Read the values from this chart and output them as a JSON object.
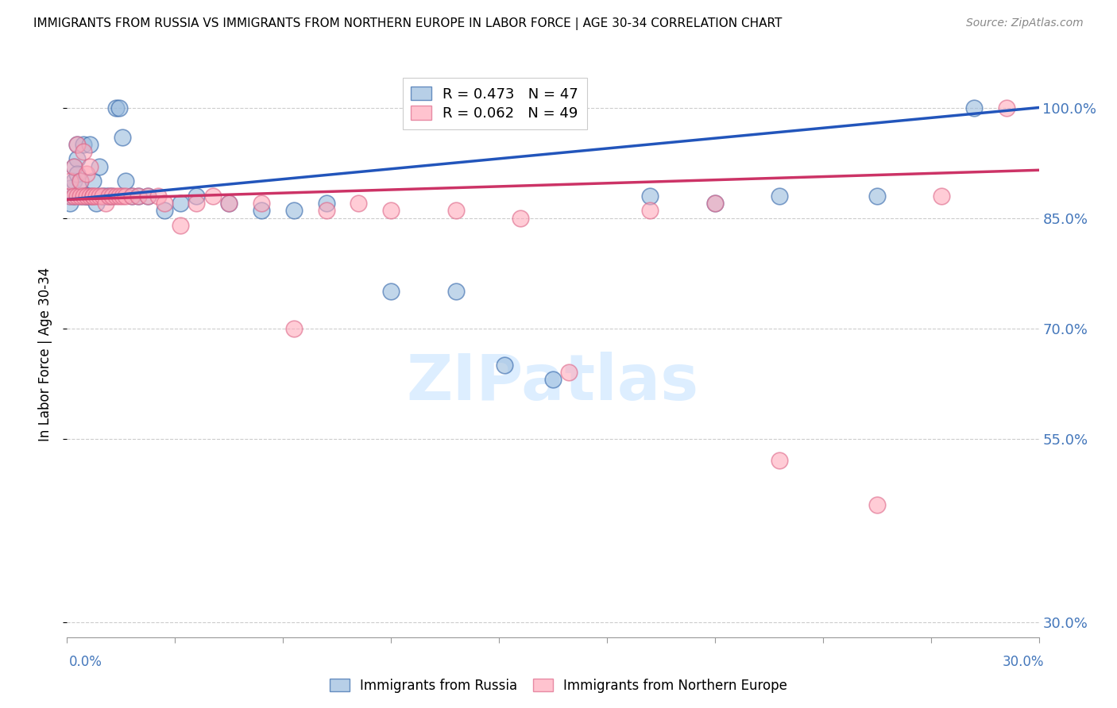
{
  "title": "IMMIGRANTS FROM RUSSIA VS IMMIGRANTS FROM NORTHERN EUROPE IN LABOR FORCE | AGE 30-34 CORRELATION CHART",
  "source": "Source: ZipAtlas.com",
  "ylabel": "In Labor Force | Age 30-34",
  "ytick_values": [
    0.3,
    0.55,
    0.7,
    0.85,
    1.0
  ],
  "ytick_labels": [
    "30.0%",
    "55.0%",
    "70.0%",
    "85.0%",
    "100.0%"
  ],
  "xlim": [
    0.0,
    0.3
  ],
  "ylim": [
    0.28,
    1.05
  ],
  "legend_blue": "R = 0.473   N = 47",
  "legend_pink": "R = 0.062   N = 49",
  "legend_label_blue": "Immigrants from Russia",
  "legend_label_pink": "Immigrants from Northern Europe",
  "blue_fill": "#99BBDD",
  "pink_fill": "#FFAABB",
  "blue_edge": "#3366AA",
  "pink_edge": "#DD6688",
  "trendline_blue": "#2255BB",
  "trendline_pink": "#CC3366",
  "watermark_color": "#DDEEFF",
  "blue_x": [
    0.001,
    0.001,
    0.001,
    0.002,
    0.002,
    0.002,
    0.003,
    0.003,
    0.003,
    0.004,
    0.004,
    0.005,
    0.005,
    0.006,
    0.006,
    0.007,
    0.007,
    0.008,
    0.009,
    0.01,
    0.011,
    0.012,
    0.013,
    0.014,
    0.015,
    0.016,
    0.017,
    0.018,
    0.02,
    0.022,
    0.025,
    0.03,
    0.035,
    0.04,
    0.05,
    0.06,
    0.07,
    0.08,
    0.1,
    0.12,
    0.135,
    0.15,
    0.18,
    0.2,
    0.22,
    0.25,
    0.28
  ],
  "blue_y": [
    0.88,
    0.87,
    0.89,
    0.88,
    0.9,
    0.92,
    0.95,
    0.93,
    0.91,
    0.9,
    0.88,
    0.95,
    0.88,
    0.88,
    0.88,
    0.88,
    0.95,
    0.9,
    0.87,
    0.92,
    0.88,
    0.88,
    0.88,
    0.88,
    1.0,
    1.0,
    0.96,
    0.9,
    0.88,
    0.88,
    0.88,
    0.86,
    0.87,
    0.88,
    0.87,
    0.86,
    0.86,
    0.87,
    0.75,
    0.75,
    0.65,
    0.63,
    0.88,
    0.87,
    0.88,
    0.88,
    1.0
  ],
  "pink_x": [
    0.001,
    0.001,
    0.002,
    0.002,
    0.003,
    0.003,
    0.004,
    0.004,
    0.005,
    0.005,
    0.006,
    0.006,
    0.007,
    0.007,
    0.008,
    0.008,
    0.009,
    0.01,
    0.011,
    0.012,
    0.013,
    0.014,
    0.015,
    0.016,
    0.017,
    0.018,
    0.02,
    0.022,
    0.025,
    0.028,
    0.03,
    0.035,
    0.04,
    0.045,
    0.05,
    0.06,
    0.07,
    0.08,
    0.09,
    0.1,
    0.12,
    0.14,
    0.155,
    0.18,
    0.2,
    0.22,
    0.25,
    0.27,
    0.29
  ],
  "pink_y": [
    0.88,
    0.9,
    0.88,
    0.92,
    0.95,
    0.88,
    0.88,
    0.9,
    0.88,
    0.94,
    0.88,
    0.91,
    0.88,
    0.92,
    0.88,
    0.88,
    0.88,
    0.88,
    0.88,
    0.87,
    0.88,
    0.88,
    0.88,
    0.88,
    0.88,
    0.88,
    0.88,
    0.88,
    0.88,
    0.88,
    0.87,
    0.84,
    0.87,
    0.88,
    0.87,
    0.87,
    0.7,
    0.86,
    0.87,
    0.86,
    0.86,
    0.85,
    0.64,
    0.86,
    0.87,
    0.52,
    0.46,
    0.88,
    1.0
  ],
  "trendline_blue_pts": [
    [
      0.0,
      0.875
    ],
    [
      0.3,
      1.0
    ]
  ],
  "trendline_pink_pts": [
    [
      0.0,
      0.875
    ],
    [
      0.3,
      0.915
    ]
  ]
}
